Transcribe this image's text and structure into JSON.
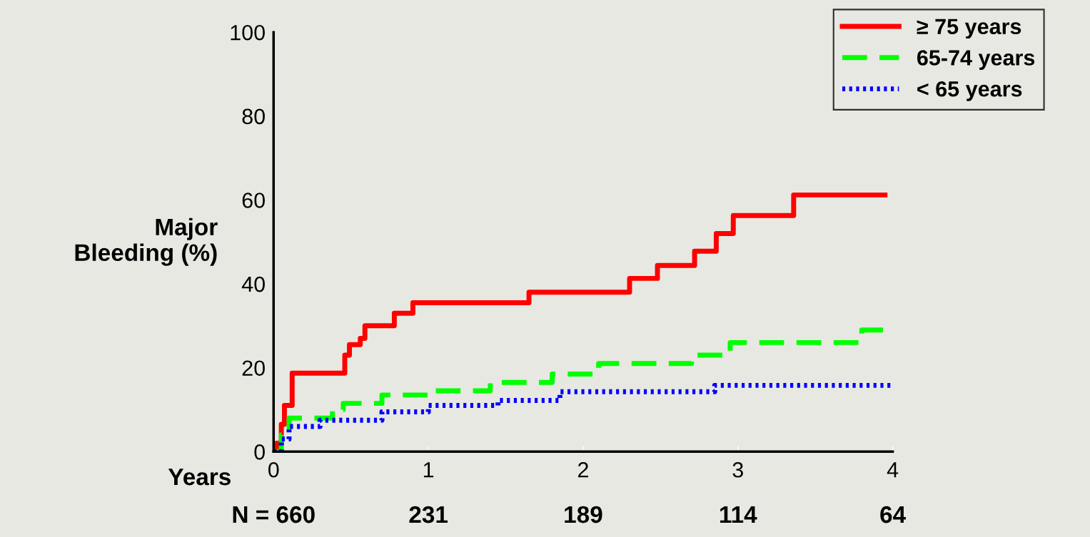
{
  "chart_data": {
    "type": "step",
    "xlabel": "Years",
    "ylabel": "Major\nBleeding (%)",
    "xlim": [
      0,
      4
    ],
    "ylim": [
      0,
      100
    ],
    "xticks": [
      0,
      1,
      2,
      3,
      4
    ],
    "yticks": [
      0,
      20,
      40,
      60,
      80,
      100
    ],
    "legend": "top right",
    "grid": false,
    "series": [
      {
        "name": "≥ 75 years",
        "color": "#ff0000",
        "line_style": "solid",
        "x": [
          0,
          0.02,
          0.05,
          0.07,
          0.12,
          0.46,
          0.49,
          0.56,
          0.59,
          0.78,
          0.9,
          1.65,
          2.3,
          2.48,
          2.72,
          2.86,
          2.97,
          3.36,
          3.95
        ],
        "values": [
          0,
          2,
          6.5,
          11,
          18.7,
          23,
          25.5,
          27,
          30,
          33,
          35.5,
          38,
          41.3,
          44.4,
          47.8,
          52,
          56.3,
          61.2,
          61.2
        ]
      },
      {
        "name": "65-74 years",
        "color": "#00ff00",
        "line_style": "dashed",
        "x": [
          0,
          0.05,
          0.1,
          0.38,
          0.45,
          0.7,
          1.0,
          1.4,
          1.8,
          2.1,
          2.7,
          2.95,
          3.8,
          3.95
        ],
        "values": [
          0,
          4,
          8,
          10,
          11.5,
          13.5,
          14.5,
          16.5,
          18.5,
          21,
          23,
          26,
          29,
          29
        ]
      },
      {
        "name": "< 65 years",
        "color": "#0000ff",
        "line_style": "dotted",
        "x": [
          0,
          0.05,
          0.1,
          0.3,
          0.7,
          1.0,
          1.45,
          1.85,
          2.85,
          4.0
        ],
        "values": [
          0,
          3,
          6,
          7.5,
          9.5,
          11,
          12.2,
          14.3,
          15.8,
          15.8
        ]
      }
    ],
    "annotations": [
      "N = 660",
      "231",
      "189",
      "114",
      "64"
    ]
  }
}
